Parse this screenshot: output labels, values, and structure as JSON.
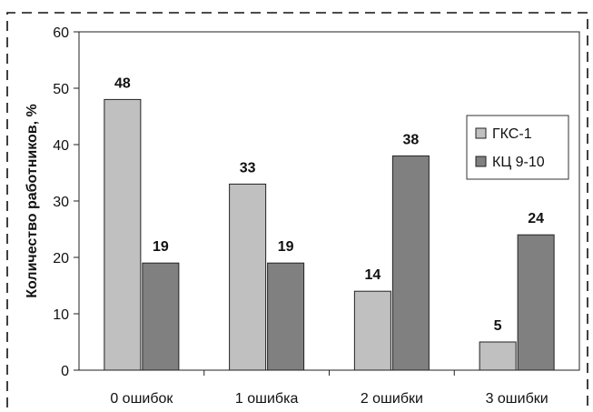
{
  "chart_data": {
    "type": "bar",
    "title": "",
    "xlabel": "",
    "ylabel": "Количество работников, %",
    "categories": [
      "0 ошибок",
      "1 ошибка",
      "2 ошибки",
      "3 ошибки"
    ],
    "series": [
      {
        "name": "ГКС-1",
        "values": [
          48,
          33,
          14,
          5
        ],
        "color": "#c0c0c0"
      },
      {
        "name": "КЦ 9-10",
        "values": [
          19,
          19,
          38,
          24
        ],
        "color": "#808080"
      }
    ],
    "ylim": [
      0,
      60
    ],
    "yticks": [
      "0",
      "10",
      "20",
      "30",
      "40",
      "50",
      "60"
    ],
    "grid": false,
    "legend_position": "right",
    "data_labels": true,
    "frame_style": "dashed"
  }
}
